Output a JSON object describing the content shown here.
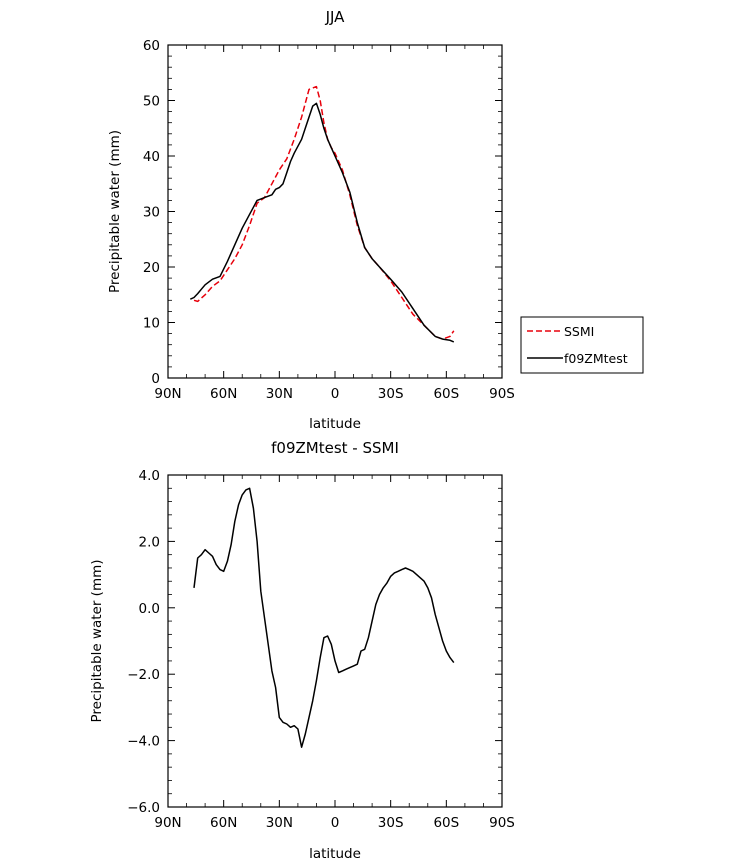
{
  "chart_data": [
    {
      "type": "line",
      "title": "JJA",
      "xlabel": "latitude",
      "ylabel": "Precipitable water (mm)",
      "xlim": [
        90,
        -90
      ],
      "ylim": [
        0,
        60
      ],
      "x_ticks": [
        {
          "value": 90,
          "label": "90N"
        },
        {
          "value": 60,
          "label": "60N"
        },
        {
          "value": 30,
          "label": "30N"
        },
        {
          "value": 0,
          "label": "0"
        },
        {
          "value": -30,
          "label": "30S"
        },
        {
          "value": -60,
          "label": "60S"
        },
        {
          "value": -90,
          "label": "90S"
        }
      ],
      "y_ticks": [
        0,
        10,
        20,
        30,
        40,
        50,
        60
      ],
      "legend": "right",
      "series": [
        {
          "name": "SSMI",
          "color": "#e8000b",
          "dash": "dashed",
          "x": [
            76,
            74,
            70,
            66,
            62,
            58,
            54,
            50,
            46,
            42,
            38,
            34,
            30,
            26,
            22,
            18,
            14,
            10,
            8,
            6,
            4,
            2,
            0,
            -4,
            -8,
            -12,
            -16,
            -20,
            -24,
            -30,
            -36,
            -42,
            -48,
            -54,
            -58,
            -62,
            -64
          ],
          "values": [
            14.0,
            13.8,
            15.0,
            16.5,
            17.5,
            19.5,
            21.5,
            24.0,
            27.5,
            31.5,
            32.5,
            35.0,
            37.5,
            39.5,
            43.0,
            47.0,
            52.0,
            52.5,
            50.0,
            46.0,
            43.0,
            41.5,
            40.5,
            37.5,
            33.0,
            27.5,
            23.5,
            21.5,
            20.0,
            17.5,
            14.5,
            11.5,
            9.5,
            7.5,
            7.0,
            7.5,
            8.5
          ]
        },
        {
          "name": "f09ZMtest",
          "color": "#000000",
          "dash": "solid",
          "x": [
            78,
            76,
            74,
            72,
            70,
            66,
            62,
            58,
            54,
            50,
            46,
            42,
            38,
            34,
            32,
            30,
            28,
            26,
            24,
            22,
            18,
            14,
            12,
            10,
            8,
            6,
            4,
            2,
            0,
            -4,
            -8,
            -12,
            -16,
            -20,
            -24,
            -30,
            -36,
            -42,
            -48,
            -54,
            -58,
            -62,
            -64
          ],
          "values": [
            14.2,
            14.5,
            15.2,
            16.0,
            16.8,
            17.8,
            18.3,
            21.0,
            24.0,
            27.0,
            29.5,
            32.0,
            32.5,
            33.0,
            34.0,
            34.3,
            35.0,
            37.0,
            39.0,
            40.5,
            43.0,
            47.0,
            49.0,
            49.5,
            47.5,
            45.0,
            43.0,
            41.5,
            40.0,
            37.0,
            33.5,
            28.0,
            23.5,
            21.5,
            20.0,
            17.8,
            15.5,
            12.5,
            9.5,
            7.5,
            7.0,
            6.8,
            6.5
          ]
        }
      ]
    },
    {
      "type": "line",
      "title": "f09ZMtest - SSMI",
      "xlabel": "latitude",
      "ylabel": "Precipitable water (mm)",
      "xlim": [
        90,
        -90
      ],
      "ylim": [
        -6,
        4
      ],
      "x_ticks": [
        {
          "value": 90,
          "label": "90N"
        },
        {
          "value": 60,
          "label": "60N"
        },
        {
          "value": 30,
          "label": "30N"
        },
        {
          "value": 0,
          "label": "0"
        },
        {
          "value": -30,
          "label": "30S"
        },
        {
          "value": -60,
          "label": "60S"
        },
        {
          "value": -90,
          "label": "90S"
        }
      ],
      "y_ticks": [
        {
          "value": 4,
          "label": "4.0"
        },
        {
          "value": 2,
          "label": "2.0"
        },
        {
          "value": 0,
          "label": "0.0"
        },
        {
          "value": -2,
          "label": "−2.0"
        },
        {
          "value": -4,
          "label": "−4.0"
        },
        {
          "value": -6,
          "label": "−6.0"
        }
      ],
      "series": [
        {
          "color": "#000000",
          "dash": "solid",
          "x": [
            76,
            74,
            72,
            70,
            68,
            66,
            64,
            62,
            60,
            58,
            56,
            54,
            52,
            50,
            48,
            46,
            44,
            42,
            40,
            38,
            36,
            34,
            32,
            30,
            28,
            26,
            24,
            22,
            20,
            18,
            16,
            14,
            12,
            10,
            8,
            6,
            4,
            2,
            0,
            -2,
            -4,
            -6,
            -8,
            -10,
            -12,
            -14,
            -16,
            -18,
            -20,
            -22,
            -24,
            -26,
            -28,
            -30,
            -32,
            -34,
            -36,
            -38,
            -40,
            -42,
            -44,
            -46,
            -48,
            -50,
            -52,
            -54,
            -56,
            -58,
            -60,
            -62,
            -64
          ],
          "values": [
            0.6,
            1.5,
            1.6,
            1.75,
            1.65,
            1.55,
            1.3,
            1.15,
            1.1,
            1.4,
            1.9,
            2.6,
            3.1,
            3.4,
            3.55,
            3.6,
            3.0,
            2.0,
            0.5,
            -0.3,
            -1.1,
            -1.9,
            -2.4,
            -3.3,
            -3.45,
            -3.5,
            -3.6,
            -3.55,
            -3.65,
            -4.2,
            -3.8,
            -3.3,
            -2.8,
            -2.2,
            -1.5,
            -0.9,
            -0.85,
            -1.1,
            -1.6,
            -1.95,
            -1.9,
            -1.85,
            -1.8,
            -1.75,
            -1.7,
            -1.3,
            -1.25,
            -0.9,
            -0.4,
            0.1,
            0.4,
            0.6,
            0.75,
            0.95,
            1.05,
            1.1,
            1.15,
            1.2,
            1.15,
            1.1,
            1.0,
            0.9,
            0.8,
            0.6,
            0.3,
            -0.2,
            -0.6,
            -1.0,
            -1.3,
            -1.5,
            -1.65
          ]
        }
      ]
    }
  ]
}
